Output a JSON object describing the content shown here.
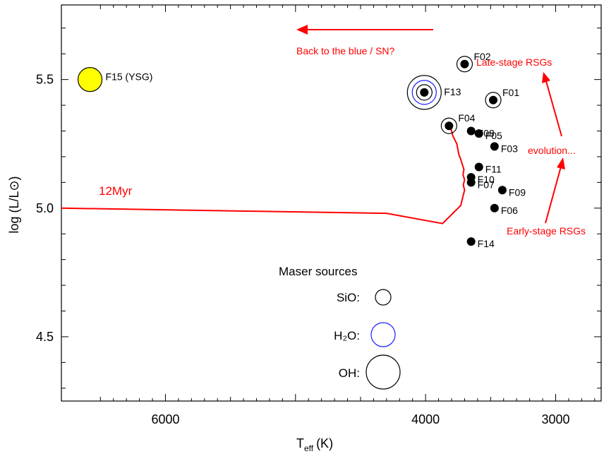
{
  "chart_data": {
    "type": "scatter",
    "xlabel_main": "T",
    "xlabel_sub": "eff",
    "xlabel_unit": "(K)",
    "ylabel": "log (L/L⊙)",
    "xlim": [
      6800,
      2650
    ],
    "ylim": [
      4.25,
      5.79
    ],
    "x_axis_reversed": true,
    "x_ticks": [
      {
        "value": 6000,
        "label": "6000"
      },
      {
        "value": 4000,
        "label": "4000"
      },
      {
        "value": 3000,
        "label": "3000"
      }
    ],
    "y_ticks": [
      {
        "value": 4.5,
        "label": "4.5"
      },
      {
        "value": 5.0,
        "label": "5.0"
      },
      {
        "value": 5.5,
        "label": "5.5"
      }
    ],
    "points": [
      {
        "name": "F01",
        "teff": 3480,
        "logL": 5.42,
        "masers": [
          "SiO"
        ]
      },
      {
        "name": "F02",
        "teff": 3700,
        "logL": 5.56,
        "masers": [
          "SiO"
        ]
      },
      {
        "name": "F03",
        "teff": 3470,
        "logL": 5.24,
        "masers": []
      },
      {
        "name": "F04",
        "teff": 3820,
        "logL": 5.32,
        "masers": [
          "SiO"
        ]
      },
      {
        "name": "F05",
        "teff": 3590,
        "logL": 5.29,
        "masers": []
      },
      {
        "name": "F06",
        "teff": 3470,
        "logL": 5.0,
        "masers": []
      },
      {
        "name": "F07",
        "teff": 3650,
        "logL": 5.1,
        "masers": []
      },
      {
        "name": "F08",
        "teff": 3650,
        "logL": 5.3,
        "masers": []
      },
      {
        "name": "F09",
        "teff": 3410,
        "logL": 5.07,
        "masers": []
      },
      {
        "name": "F10",
        "teff": 3650,
        "logL": 5.12,
        "masers": []
      },
      {
        "name": "F11",
        "teff": 3590,
        "logL": 5.16,
        "masers": []
      },
      {
        "name": "F13",
        "teff": 4010,
        "logL": 5.45,
        "masers": [
          "SiO",
          "H2O",
          "OH"
        ]
      },
      {
        "name": "F14",
        "teff": 3650,
        "logL": 4.87,
        "masers": []
      },
      {
        "name": "F15 (YSG)",
        "teff": 6580,
        "logL": 5.5,
        "masers": [],
        "highlight": true
      }
    ],
    "isochrone": {
      "label": "12Myr",
      "points": [
        [
          6800,
          5.0
        ],
        [
          4300,
          4.98
        ],
        [
          3870,
          4.94
        ],
        [
          3730,
          5.01
        ],
        [
          3700,
          5.07
        ],
        [
          3710,
          5.09
        ],
        [
          3700,
          5.11
        ],
        [
          3712,
          5.13
        ],
        [
          3705,
          5.15
        ],
        [
          3730,
          5.19
        ],
        [
          3745,
          5.21
        ],
        [
          3760,
          5.25
        ],
        [
          3790,
          5.28
        ],
        [
          3800,
          5.3
        ],
        [
          3810,
          5.32
        ]
      ]
    },
    "annotations": {
      "back": "Back to the blue / SN?",
      "late": "Late-stage RSGs",
      "evolution": "evolution...",
      "early": "Early-stage RSGs"
    },
    "legend": {
      "title": "Maser sources",
      "items": [
        {
          "label": "SiO:",
          "color": "#000000"
        },
        {
          "label": "H₂O:",
          "color": "#1a1aff"
        },
        {
          "label": "OH:",
          "color": "#000000"
        }
      ]
    },
    "colors": {
      "track": "#ff0000",
      "annotation": "#ff0000",
      "ysg_fill": "#ffff00",
      "h2o": "#1a1aff"
    }
  }
}
